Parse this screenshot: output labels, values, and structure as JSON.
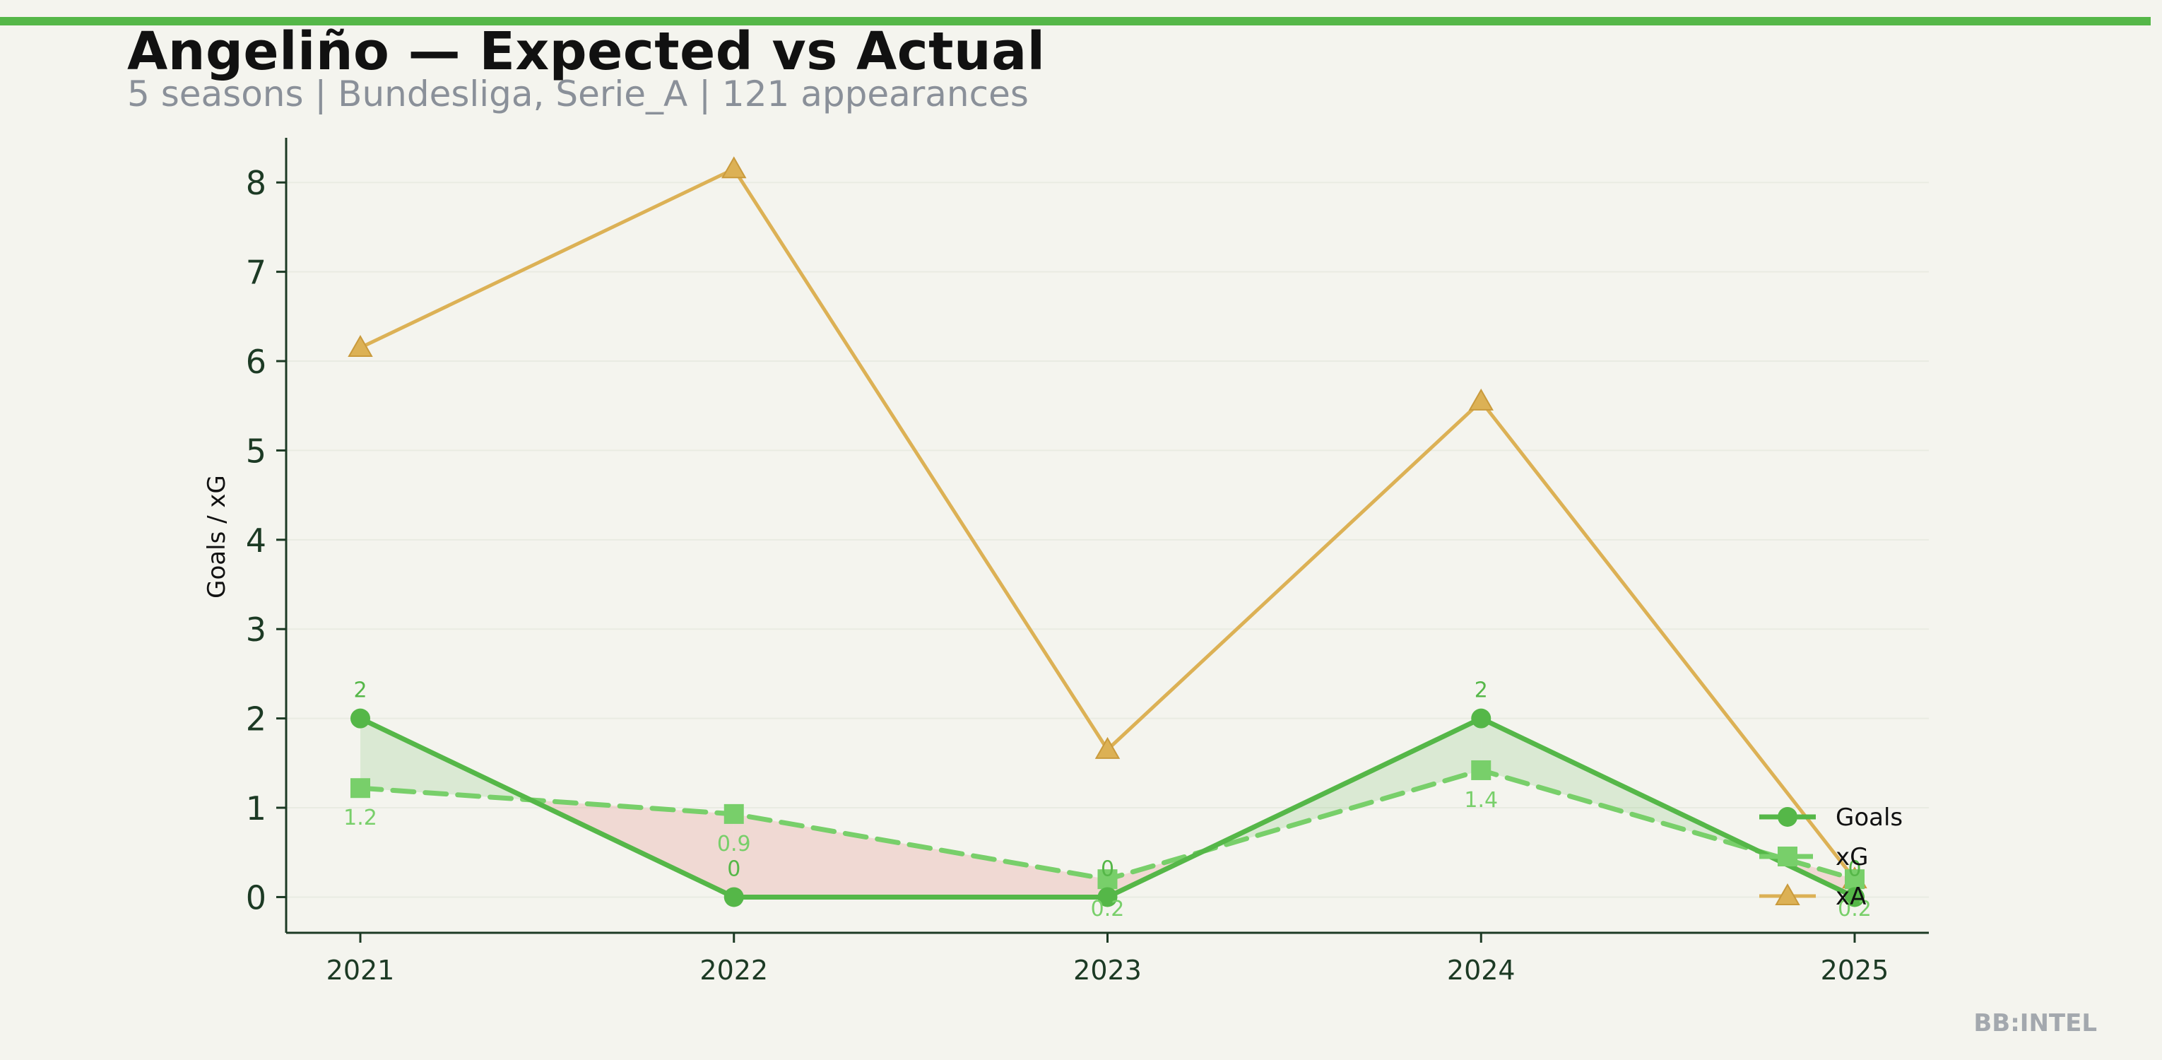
{
  "header": {
    "title": "Angeliño — Expected vs Actual",
    "subtitle": "5 seasons | Bundesliga, Serie_A | 121 appearances"
  },
  "brand": "BB:INTEL",
  "colors": {
    "background": "#f4f4ee",
    "accent": "#55b748",
    "goals": "#55b748",
    "xg": "#78cf6a",
    "xa": "#dcb155",
    "overperform_fill": "#55b748",
    "underperform_fill": "#e8a6a0",
    "axis": "#1c3a24"
  },
  "chart_data": {
    "type": "line",
    "x": [
      2021,
      2022,
      2023,
      2024,
      2025
    ],
    "xticks": [
      "2021",
      "2022",
      "2023",
      "2024",
      "2025"
    ],
    "yticks": [
      "0",
      "1",
      "2",
      "3",
      "4",
      "5",
      "6",
      "7",
      "8"
    ],
    "ylabel": "Goals / xG",
    "ylim": [
      -0.4,
      8.5
    ],
    "grid": true,
    "legend_position": "bottom-right",
    "series": [
      {
        "name": "Goals",
        "values": [
          2,
          0,
          0,
          2,
          0
        ],
        "labels": [
          "2",
          "0",
          "0",
          "2",
          "0"
        ],
        "marker": "circle",
        "style": "solid"
      },
      {
        "name": "xG",
        "values": [
          1.22,
          0.93,
          0.2,
          1.42,
          0.2
        ],
        "labels": [
          "1.2",
          "0.9",
          "0.2",
          "1.4",
          "0.2"
        ],
        "marker": "square",
        "style": "dashed"
      },
      {
        "name": "xA",
        "values": [
          6.15,
          8.15,
          1.65,
          5.55,
          0.2
        ],
        "marker": "triangle",
        "style": "solid"
      }
    ]
  }
}
